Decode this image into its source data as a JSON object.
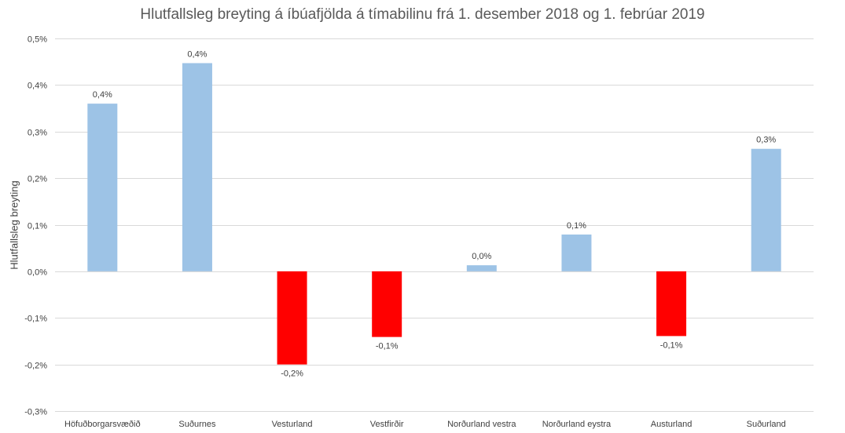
{
  "chart_data": {
    "type": "bar",
    "title": "Hlutfallsleg breyting á íbúafjölda á tímabilinu frá 1. desember 2018 og 1. febrúar 2019",
    "xlabel": "",
    "ylabel": "Hlutfallsleg breyting",
    "ylim": [
      -0.3,
      0.5
    ],
    "yticks": [
      0.5,
      0.4,
      0.3,
      0.2,
      0.1,
      0.0,
      -0.1,
      -0.2,
      -0.3
    ],
    "ytick_labels": [
      "0,5%",
      "0,4%",
      "0,3%",
      "0,2%",
      "0,1%",
      "0,0%",
      "-0,1%",
      "-0,2%",
      "-0,3%"
    ],
    "grid": true,
    "categories": [
      "Höfuðborgarsvæðið",
      "Suðurnes",
      "Vesturland",
      "Vestfirðir",
      "Norðurland vestra",
      "Norðurland eystra",
      "Austurland",
      "Suðurland"
    ],
    "values": [
      0.36,
      0.447,
      -0.2,
      -0.141,
      0.013,
      0.079,
      -0.139,
      0.263
    ],
    "data_labels": [
      "0,4%",
      "0,4%",
      "-0,2%",
      "-0,1%",
      "0,0%",
      "0,1%",
      "-0,1%",
      "0,3%"
    ],
    "colors": {
      "positive": "#9dc3e6",
      "negative": "#ff0000",
      "grid": "#d9d9d9",
      "text": "#404040"
    }
  }
}
